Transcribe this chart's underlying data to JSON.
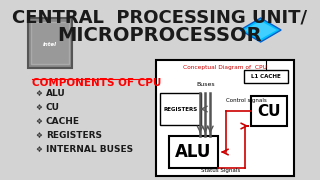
{
  "bg_color": "#d3d3d3",
  "title_line1": "CENTRAL  PROCESSING UNIT/",
  "title_line2": "MICROPROCESSOR",
  "title_color": "#1a1a1a",
  "title_fontsize": 13,
  "components_title": "COMPONENTS OF CPU",
  "components_color": "#ff0000",
  "components_fontsize": 7.5,
  "items": [
    "ALU",
    "CU",
    "CACHE",
    "REGISTERS",
    "INTERNAL BUSES"
  ],
  "items_fontsize": 6.5,
  "diagram_title": "Conceptual Diagram of  CPU",
  "diagram_title_color": "#cc0000",
  "diagram_bg": "#ffffff",
  "diagram_border": "#000000",
  "l1_cache_label": "L1 CACHE",
  "registers_label": "REGISTERS",
  "alu_label": "ALU",
  "cu_label": "CU",
  "buses_label": "Buses",
  "control_label": "Control signals",
  "status_label": "Status Signals",
  "arrow_color": "#555555",
  "red_line_color": "#cc0000"
}
